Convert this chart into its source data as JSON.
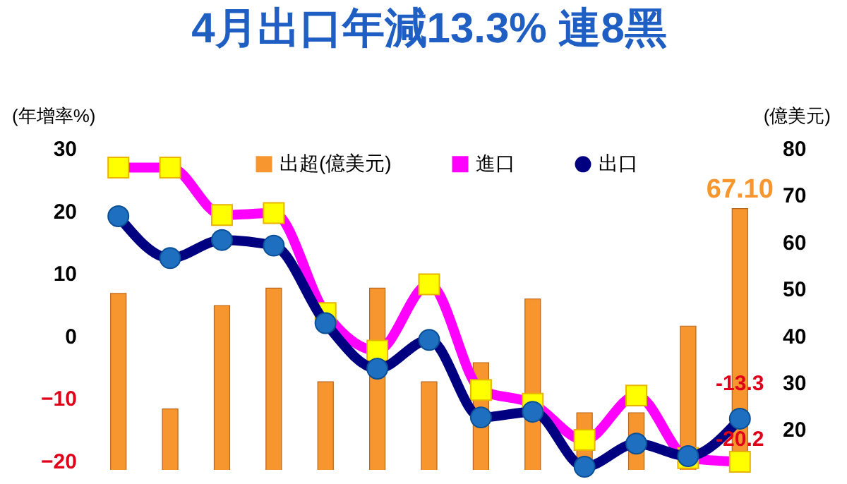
{
  "chart_data": {
    "type": "bar",
    "title": "4月出口年減13.3% 連8黑",
    "ylabel": "(年增率%)",
    "y2label": "(億美元)",
    "categories": [
      null,
      null,
      null,
      null,
      null,
      null,
      null,
      null,
      null,
      null,
      null,
      null,
      null
    ],
    "series": [
      {
        "name": "出超(億美元)",
        "axis": "y2",
        "color": "#f7962f",
        "values": [
          49.0,
          24.3,
          46.4,
          50.1,
          30.1,
          50.1,
          30.1,
          34.2,
          47.8,
          23.5,
          23.5,
          42.0,
          67.1
        ],
        "value_labels": [
          null,
          null,
          null,
          null,
          null,
          null,
          null,
          null,
          null,
          null,
          null,
          null,
          "67.10"
        ]
      },
      {
        "name": "進口",
        "type": "line",
        "marker": "square",
        "color": "#ff00ff",
        "values": [
          26.9,
          26.9,
          19.3,
          19.6,
          3.6,
          -2.4,
          8.2,
          -8.7,
          -10.9,
          -16.7,
          -9.6,
          -19.6,
          -20.2
        ],
        "value_labels": [
          null,
          null,
          null,
          null,
          null,
          null,
          null,
          null,
          null,
          null,
          null,
          null,
          "-20.2"
        ]
      },
      {
        "name": "出口",
        "type": "line",
        "marker": "circle",
        "color": "#000080",
        "values": [
          19.1,
          12.4,
          15.3,
          14.4,
          2.0,
          -5.3,
          -0.7,
          -13.1,
          -12.2,
          -21.0,
          -17.3,
          -19.3,
          -13.3
        ],
        "value_labels": [
          null,
          null,
          null,
          null,
          null,
          null,
          null,
          null,
          null,
          null,
          null,
          null,
          "-13.3"
        ]
      }
    ],
    "ylim": [
      -21.5,
      30
    ],
    "yticks": [
      -20,
      -10,
      0,
      10,
      20,
      30
    ],
    "y2lim": [
      11.3,
      80
    ],
    "y2ticks": [
      20,
      30,
      40,
      50,
      60,
      70,
      80
    ],
    "legend": "top",
    "grid": false,
    "tick_labels": "y"
  }
}
